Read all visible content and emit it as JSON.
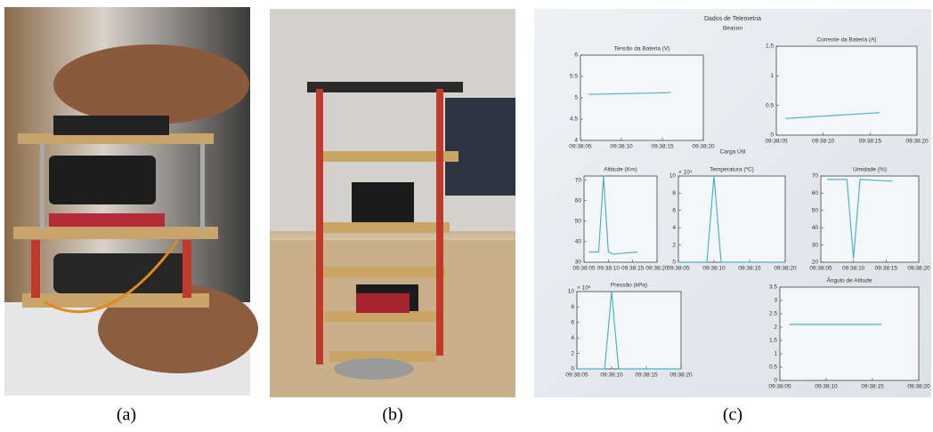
{
  "panels": [
    {
      "label": "(a)"
    },
    {
      "label": "(b)"
    },
    {
      "label": "(c)"
    }
  ],
  "screen": {
    "title": "Dados de Telemetria",
    "subtitle": "Beacon",
    "section": "Carga Útil",
    "plots": [
      {
        "title": "Tensão da Bateria (V)",
        "ylim": [
          4,
          6
        ],
        "yticks": [
          4,
          4.5,
          5,
          5.5,
          6
        ],
        "xlim": [
          5,
          20
        ],
        "xticks": [
          {
            "value": 5,
            "label": "09:38:05"
          },
          {
            "value": 10,
            "label": "09:38:10"
          },
          {
            "value": 15,
            "label": "09:38:15"
          },
          {
            "value": 20,
            "label": "09:38:20"
          }
        ],
        "x": [
          6,
          16
        ],
        "values": [
          5.08,
          5.12
        ]
      },
      {
        "title": "Corrente da Bateria (A)",
        "ylim": [
          0,
          1.5
        ],
        "yticks": [
          0,
          0.5,
          1,
          1.5
        ],
        "xlim": [
          5,
          20
        ],
        "xticks": [
          {
            "value": 5,
            "label": "09:38:05"
          },
          {
            "value": 10,
            "label": "09:38:10"
          },
          {
            "value": 15,
            "label": "09:38:15"
          },
          {
            "value": 20,
            "label": "09:38:20"
          }
        ],
        "x": [
          6,
          16
        ],
        "values": [
          0.28,
          0.38
        ]
      },
      {
        "title": "Altitude (Km)",
        "ylim": [
          30,
          72
        ],
        "yticks": [
          30,
          40,
          50,
          60,
          70
        ],
        "xlim": [
          5,
          20
        ],
        "xticks": [
          {
            "value": 5,
            "label": "09:38:05"
          },
          {
            "value": 10,
            "label": "09:38:10"
          },
          {
            "value": 15,
            "label": "09:38:15"
          },
          {
            "value": 20,
            "label": "09:38:20"
          }
        ],
        "x": [
          6,
          8,
          9,
          10,
          11,
          16
        ],
        "values": [
          35,
          35,
          72,
          35,
          34,
          35
        ]
      },
      {
        "title": "Temperatura (ºC)",
        "offset": "× 10⁴",
        "ylim": [
          0,
          10
        ],
        "yticks": [
          0,
          2,
          4,
          6,
          8,
          10
        ],
        "xlim": [
          5,
          20
        ],
        "xticks": [
          {
            "value": 5,
            "label": "09:38:05"
          },
          {
            "value": 10,
            "label": "09:38:10"
          },
          {
            "value": 15,
            "label": "09:38:15"
          },
          {
            "value": 20,
            "label": "09:38:20"
          }
        ],
        "x": [
          5,
          9,
          10,
          11,
          20
        ],
        "values": [
          0,
          0,
          10,
          0,
          0
        ]
      },
      {
        "title": "Umidade (%)",
        "ylim": [
          20,
          70
        ],
        "yticks": [
          20,
          30,
          40,
          50,
          60,
          70
        ],
        "xlim": [
          5,
          20
        ],
        "xticks": [
          {
            "value": 5,
            "label": "09:38:05"
          },
          {
            "value": 10,
            "label": "09:38:10"
          },
          {
            "value": 15,
            "label": "09:38:15"
          },
          {
            "value": 20,
            "label": "09:38:20"
          }
        ],
        "x": [
          6,
          9,
          10,
          11,
          16
        ],
        "values": [
          68,
          68,
          22,
          68,
          67
        ]
      },
      {
        "title": "Pressão (kPa)",
        "offset": "× 10⁵",
        "ylim": [
          0,
          10
        ],
        "yticks": [
          0,
          2,
          4,
          6,
          8,
          10
        ],
        "xlim": [
          5,
          20
        ],
        "xticks": [
          {
            "value": 5,
            "label": "09:38:05"
          },
          {
            "value": 10,
            "label": "09:38:10"
          },
          {
            "value": 15,
            "label": "09:38:15"
          },
          {
            "value": 20,
            "label": "09:38:20"
          }
        ],
        "x": [
          5,
          9,
          10,
          11,
          20
        ],
        "values": [
          0,
          0,
          10,
          0,
          0
        ]
      },
      {
        "title": "Ângulo de Atitude",
        "ylim": [
          0,
          3.5
        ],
        "yticks": [
          0,
          0.5,
          1,
          1.5,
          2,
          2.5,
          3,
          3.5
        ],
        "xlim": [
          5,
          20
        ],
        "xticks": [
          {
            "value": 5,
            "label": "09:38:05"
          },
          {
            "value": 10,
            "label": "09:38:10"
          },
          {
            "value": 15,
            "label": "09:38:15"
          },
          {
            "value": 20,
            "label": "09:38:20"
          }
        ],
        "x": [
          6,
          16
        ],
        "values": [
          2.1,
          2.1
        ]
      }
    ]
  }
}
